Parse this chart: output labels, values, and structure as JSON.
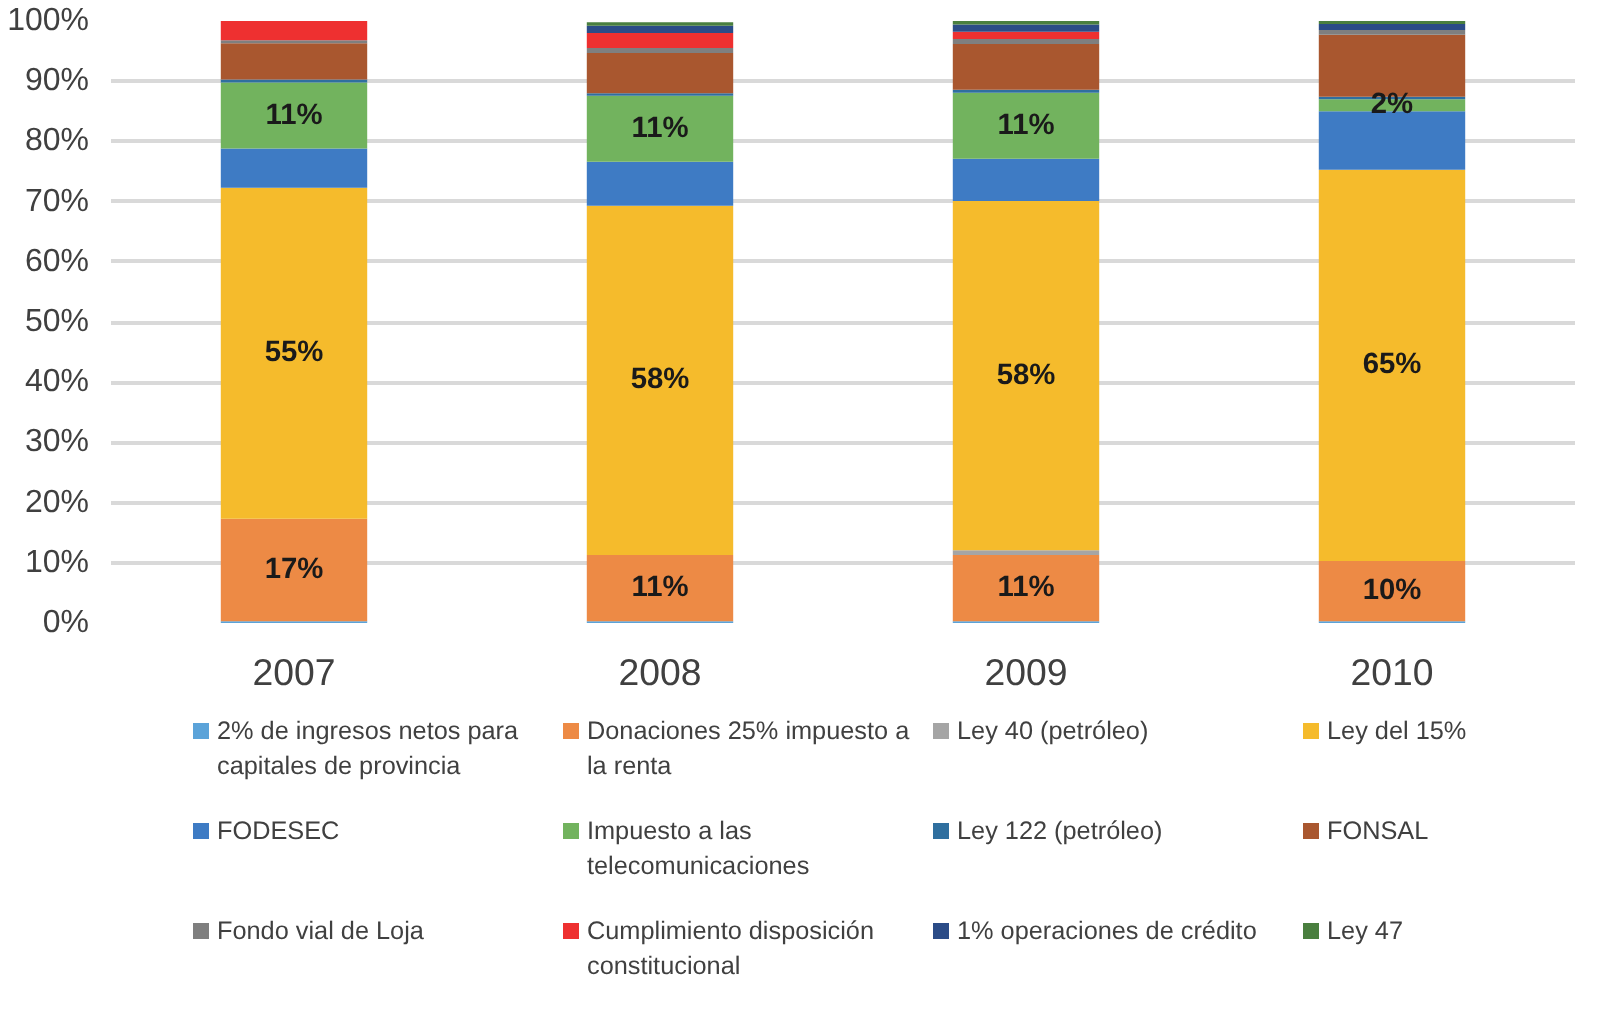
{
  "chart_data": {
    "type": "bar",
    "stacked": true,
    "categories": [
      "2007",
      "2008",
      "2009",
      "2010"
    ],
    "series": [
      {
        "name": "2% de ingresos netos para capitales de provincia",
        "color": "#5ba3d9",
        "values": [
          0.3,
          0.3,
          0.3,
          0.3
        ]
      },
      {
        "name": "Donaciones 25% impuesto a la renta",
        "color": "#ed8a45",
        "values": [
          17,
          11,
          11,
          10
        ],
        "value_labels": [
          "17%",
          "11%",
          "11%",
          "10%"
        ]
      },
      {
        "name": "Ley 40 (petróleo)",
        "color": "#a5a5a5",
        "values": [
          0,
          null,
          0.8,
          0
        ]
      },
      {
        "name": "Ley del 15%",
        "color": "#f5bb2c",
        "values": [
          55,
          58,
          58,
          65
        ],
        "value_labels": [
          "55%",
          "58%",
          "58%",
          "65%"
        ]
      },
      {
        "name": "FODESEC",
        "color": "#3e7bc4",
        "values": [
          6.5,
          7.3,
          7,
          9.7
        ]
      },
      {
        "name": "Impuesto a las telecomunicaciones",
        "color": "#72b35e",
        "values": [
          11,
          11,
          11,
          2
        ],
        "value_labels": [
          "11%",
          "11%",
          "11%",
          "2%"
        ]
      },
      {
        "name": "Ley 122 (petróleo)",
        "color": "#2f6f9f",
        "values": [
          0.5,
          0.4,
          0.5,
          0.4
        ]
      },
      {
        "name": "FONSAL",
        "color": "#a9572f",
        "values": [
          6,
          6.7,
          7.6,
          10.3
        ]
      },
      {
        "name": "Fondo vial de Loja",
        "color": "#7f7f7f",
        "values": [
          0.5,
          0.8,
          0.8,
          0.8
        ]
      },
      {
        "name": "Cumplimiento disposición constitucional",
        "color": "#ee3030",
        "values": [
          3.2,
          2.5,
          1.2,
          0
        ]
      },
      {
        "name": "1% operaciones de crédito",
        "color": "#2b4c87",
        "values": [
          0,
          1.2,
          1.2,
          1
        ]
      },
      {
        "name": "Ley 47",
        "color": "#4a7f3f",
        "values": [
          0,
          0.6,
          0.6,
          0.5
        ]
      }
    ],
    "ylim": [
      0,
      100
    ],
    "yticks": [
      {
        "value": 0,
        "label": "0%"
      },
      {
        "value": 10,
        "label": "10%"
      },
      {
        "value": 20,
        "label": "20%"
      },
      {
        "value": 30,
        "label": "30%"
      },
      {
        "value": 40,
        "label": "40%"
      },
      {
        "value": 50,
        "label": "50%"
      },
      {
        "value": 60,
        "label": "60%"
      },
      {
        "value": 70,
        "label": "70%"
      },
      {
        "value": 80,
        "label": "80%"
      },
      {
        "value": 90,
        "label": "90%"
      },
      {
        "value": 100,
        "label": "100%"
      }
    ],
    "grid": "y",
    "legend": "bottom"
  }
}
